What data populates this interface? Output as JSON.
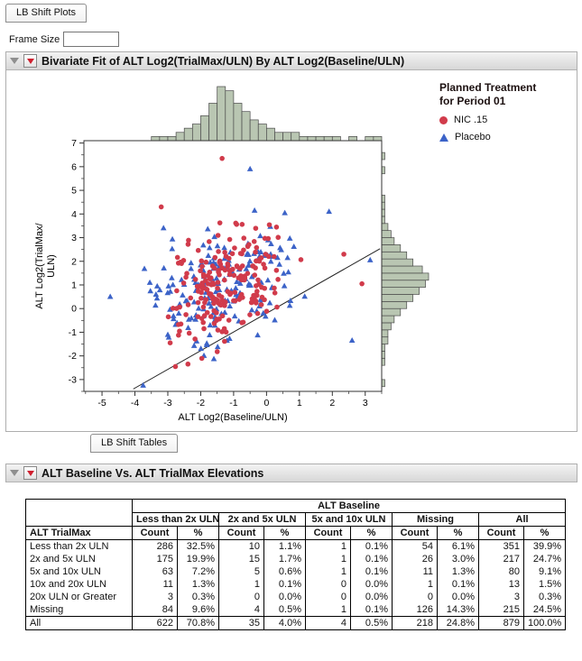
{
  "tabs": {
    "plots_label": "LB Shift Plots",
    "tables_label": "LB Shift Tables"
  },
  "frame_size_label": "Frame Size",
  "frame_size_value": "",
  "sections": {
    "bivariate_title": "Bivariate Fit of ALT Log2(TrialMax/ULN) By ALT Log2(Baseline/ULN)",
    "elevations_title": "ALT Baseline Vs. ALT TrialMax Elevations"
  },
  "legend": {
    "title_line1": "Planned Treatment",
    "title_line2": "for Period 01",
    "items": [
      {
        "label": "NIC .15",
        "color": "#d13b4b",
        "marker": "circle"
      },
      {
        "label": "Placebo",
        "color": "#3c63c8",
        "marker": "triangle"
      }
    ]
  },
  "chart_data": {
    "type": "scatter",
    "title": "Bivariate Fit of ALT Log2(TrialMax/ULN) By ALT Log2(Baseline/ULN)",
    "xlabel": "ALT Log2(Baseline/ULN)",
    "ylabel": "ALT Log2(TrialMax/ULN)",
    "ylabel_lines": [
      "ALT Log2(TrialMax/",
      "ULN)"
    ],
    "xlim": [
      -5.55,
      3.5
    ],
    "ylim": [
      -3.5,
      7.1
    ],
    "xticks": [
      -5,
      -4,
      -3,
      -2,
      -1,
      0,
      1,
      2,
      3
    ],
    "yticks": [
      -3,
      -2,
      -1,
      0,
      1,
      2,
      3,
      4,
      5,
      6,
      7
    ],
    "grid": false,
    "legend_position": "top-right",
    "fit_line": {
      "x1": -4.05,
      "y1": -3.4,
      "x2": 3.45,
      "y2": 2.53
    },
    "histogram_color": "#b9c6b2",
    "series": [
      {
        "name": "NIC .15",
        "marker": "circle",
        "color": "#d13b4b",
        "n": 215,
        "mean": [
          -1.15,
          1.05
        ],
        "sd": [
          0.78,
          1.12
        ]
      },
      {
        "name": "Placebo",
        "marker": "triangle",
        "color": "#3c63c8",
        "n": 185,
        "mean": [
          -1.2,
          0.95
        ],
        "sd": [
          1.0,
          1.2
        ]
      }
    ],
    "extra_points": [
      {
        "series": 1,
        "x": -3.75,
        "y": -3.25
      },
      {
        "series": 0,
        "x": -1.35,
        "y": 6.35
      },
      {
        "series": 1,
        "x": -0.5,
        "y": 5.9
      },
      {
        "series": 1,
        "x": -4.75,
        "y": 0.5
      },
      {
        "series": 0,
        "x": 2.35,
        "y": 2.3
      },
      {
        "series": 1,
        "x": 2.6,
        "y": -1.35
      },
      {
        "series": 0,
        "x": 2.9,
        "y": 1.05
      },
      {
        "series": 1,
        "x": 1.9,
        "y": 4.1
      },
      {
        "series": 1,
        "x": 3.15,
        "y": 2.05
      },
      {
        "series": 0,
        "x": -3.2,
        "y": 4.3
      }
    ],
    "seed": 20,
    "x_histogram": {
      "bin_start": -3.5,
      "bin_width": 0.25,
      "counts": [
        1,
        1,
        1,
        2,
        3,
        4,
        6,
        9,
        13,
        12,
        9,
        7,
        5,
        4,
        3,
        2,
        2,
        2,
        1,
        1,
        1,
        1,
        1,
        0,
        1,
        0,
        1,
        1
      ]
    },
    "y_histogram": {
      "bin_start": -3.3,
      "bin_width": 0.3,
      "counts": [
        1,
        0,
        0,
        1,
        1,
        1,
        2,
        2,
        3,
        4,
        6,
        8,
        10,
        12,
        14,
        15,
        13,
        10,
        8,
        6,
        4,
        3,
        2,
        1,
        1,
        1,
        1,
        0,
        0,
        0,
        1,
        0,
        1
      ]
    }
  },
  "shift_table": {
    "span_header": "ALT Baseline",
    "row_header": "ALT TrialMax",
    "groups": [
      "Less than 2x ULN",
      "2x and 5x ULN",
      "5x and 10x ULN",
      "Missing",
      "All"
    ],
    "sub_headers": [
      "Count",
      "%"
    ],
    "rows": [
      {
        "label": "Less than 2x ULN",
        "values": [
          "286",
          "32.5%",
          "10",
          "1.1%",
          "1",
          "0.1%",
          "54",
          "6.1%",
          "351",
          "39.9%"
        ]
      },
      {
        "label": "2x and 5x ULN",
        "values": [
          "175",
          "19.9%",
          "15",
          "1.7%",
          "1",
          "0.1%",
          "26",
          "3.0%",
          "217",
          "24.7%"
        ]
      },
      {
        "label": "5x and 10x ULN",
        "values": [
          "63",
          "7.2%",
          "5",
          "0.6%",
          "1",
          "0.1%",
          "11",
          "1.3%",
          "80",
          "9.1%"
        ]
      },
      {
        "label": "10x and 20x ULN",
        "values": [
          "11",
          "1.3%",
          "1",
          "0.1%",
          "0",
          "0.0%",
          "1",
          "0.1%",
          "13",
          "1.5%"
        ]
      },
      {
        "label": "20x ULN or Greater",
        "values": [
          "3",
          "0.3%",
          "0",
          "0.0%",
          "0",
          "0.0%",
          "0",
          "0.0%",
          "3",
          "0.3%"
        ]
      },
      {
        "label": "Missing",
        "values": [
          "84",
          "9.6%",
          "4",
          "0.5%",
          "1",
          "0.1%",
          "126",
          "14.3%",
          "215",
          "24.5%"
        ]
      },
      {
        "label": "All",
        "values": [
          "622",
          "70.8%",
          "35",
          "4.0%",
          "4",
          "0.5%",
          "218",
          "24.8%",
          "879",
          "100.0%"
        ]
      }
    ]
  }
}
